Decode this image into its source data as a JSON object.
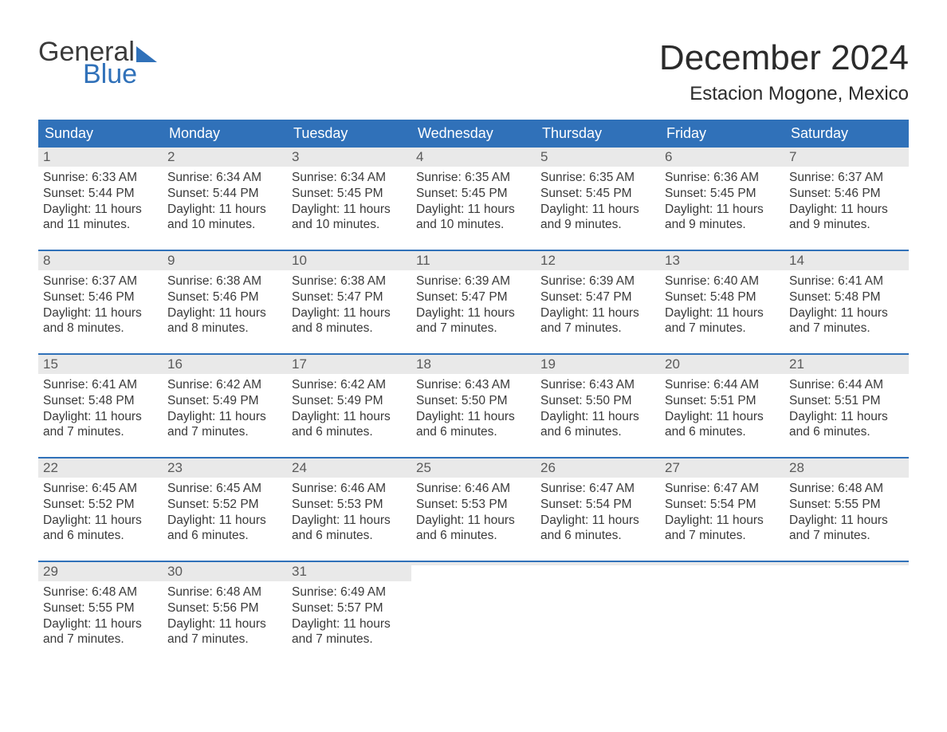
{
  "logo": {
    "line1": "General",
    "line2": "Blue"
  },
  "title": "December 2024",
  "location": "Estacion Mogone, Mexico",
  "colors": {
    "brand_blue": "#3071b9",
    "header_text": "#ffffff",
    "daynum_bg": "#e9e9e9",
    "body_text": "#3a3a3a",
    "page_bg": "#ffffff"
  },
  "typography": {
    "title_fontsize": 44,
    "location_fontsize": 24,
    "header_fontsize": 18,
    "body_fontsize": 15.5
  },
  "weekdays": [
    "Sunday",
    "Monday",
    "Tuesday",
    "Wednesday",
    "Thursday",
    "Friday",
    "Saturday"
  ],
  "weeks": [
    [
      {
        "num": "1",
        "sunrise": "Sunrise: 6:33 AM",
        "sunset": "Sunset: 5:44 PM",
        "daylight": "Daylight: 11 hours and 11 minutes."
      },
      {
        "num": "2",
        "sunrise": "Sunrise: 6:34 AM",
        "sunset": "Sunset: 5:44 PM",
        "daylight": "Daylight: 11 hours and 10 minutes."
      },
      {
        "num": "3",
        "sunrise": "Sunrise: 6:34 AM",
        "sunset": "Sunset: 5:45 PM",
        "daylight": "Daylight: 11 hours and 10 minutes."
      },
      {
        "num": "4",
        "sunrise": "Sunrise: 6:35 AM",
        "sunset": "Sunset: 5:45 PM",
        "daylight": "Daylight: 11 hours and 10 minutes."
      },
      {
        "num": "5",
        "sunrise": "Sunrise: 6:35 AM",
        "sunset": "Sunset: 5:45 PM",
        "daylight": "Daylight: 11 hours and 9 minutes."
      },
      {
        "num": "6",
        "sunrise": "Sunrise: 6:36 AM",
        "sunset": "Sunset: 5:45 PM",
        "daylight": "Daylight: 11 hours and 9 minutes."
      },
      {
        "num": "7",
        "sunrise": "Sunrise: 6:37 AM",
        "sunset": "Sunset: 5:46 PM",
        "daylight": "Daylight: 11 hours and 9 minutes."
      }
    ],
    [
      {
        "num": "8",
        "sunrise": "Sunrise: 6:37 AM",
        "sunset": "Sunset: 5:46 PM",
        "daylight": "Daylight: 11 hours and 8 minutes."
      },
      {
        "num": "9",
        "sunrise": "Sunrise: 6:38 AM",
        "sunset": "Sunset: 5:46 PM",
        "daylight": "Daylight: 11 hours and 8 minutes."
      },
      {
        "num": "10",
        "sunrise": "Sunrise: 6:38 AM",
        "sunset": "Sunset: 5:47 PM",
        "daylight": "Daylight: 11 hours and 8 minutes."
      },
      {
        "num": "11",
        "sunrise": "Sunrise: 6:39 AM",
        "sunset": "Sunset: 5:47 PM",
        "daylight": "Daylight: 11 hours and 7 minutes."
      },
      {
        "num": "12",
        "sunrise": "Sunrise: 6:39 AM",
        "sunset": "Sunset: 5:47 PM",
        "daylight": "Daylight: 11 hours and 7 minutes."
      },
      {
        "num": "13",
        "sunrise": "Sunrise: 6:40 AM",
        "sunset": "Sunset: 5:48 PM",
        "daylight": "Daylight: 11 hours and 7 minutes."
      },
      {
        "num": "14",
        "sunrise": "Sunrise: 6:41 AM",
        "sunset": "Sunset: 5:48 PM",
        "daylight": "Daylight: 11 hours and 7 minutes."
      }
    ],
    [
      {
        "num": "15",
        "sunrise": "Sunrise: 6:41 AM",
        "sunset": "Sunset: 5:48 PM",
        "daylight": "Daylight: 11 hours and 7 minutes."
      },
      {
        "num": "16",
        "sunrise": "Sunrise: 6:42 AM",
        "sunset": "Sunset: 5:49 PM",
        "daylight": "Daylight: 11 hours and 7 minutes."
      },
      {
        "num": "17",
        "sunrise": "Sunrise: 6:42 AM",
        "sunset": "Sunset: 5:49 PM",
        "daylight": "Daylight: 11 hours and 6 minutes."
      },
      {
        "num": "18",
        "sunrise": "Sunrise: 6:43 AM",
        "sunset": "Sunset: 5:50 PM",
        "daylight": "Daylight: 11 hours and 6 minutes."
      },
      {
        "num": "19",
        "sunrise": "Sunrise: 6:43 AM",
        "sunset": "Sunset: 5:50 PM",
        "daylight": "Daylight: 11 hours and 6 minutes."
      },
      {
        "num": "20",
        "sunrise": "Sunrise: 6:44 AM",
        "sunset": "Sunset: 5:51 PM",
        "daylight": "Daylight: 11 hours and 6 minutes."
      },
      {
        "num": "21",
        "sunrise": "Sunrise: 6:44 AM",
        "sunset": "Sunset: 5:51 PM",
        "daylight": "Daylight: 11 hours and 6 minutes."
      }
    ],
    [
      {
        "num": "22",
        "sunrise": "Sunrise: 6:45 AM",
        "sunset": "Sunset: 5:52 PM",
        "daylight": "Daylight: 11 hours and 6 minutes."
      },
      {
        "num": "23",
        "sunrise": "Sunrise: 6:45 AM",
        "sunset": "Sunset: 5:52 PM",
        "daylight": "Daylight: 11 hours and 6 minutes."
      },
      {
        "num": "24",
        "sunrise": "Sunrise: 6:46 AM",
        "sunset": "Sunset: 5:53 PM",
        "daylight": "Daylight: 11 hours and 6 minutes."
      },
      {
        "num": "25",
        "sunrise": "Sunrise: 6:46 AM",
        "sunset": "Sunset: 5:53 PM",
        "daylight": "Daylight: 11 hours and 6 minutes."
      },
      {
        "num": "26",
        "sunrise": "Sunrise: 6:47 AM",
        "sunset": "Sunset: 5:54 PM",
        "daylight": "Daylight: 11 hours and 6 minutes."
      },
      {
        "num": "27",
        "sunrise": "Sunrise: 6:47 AM",
        "sunset": "Sunset: 5:54 PM",
        "daylight": "Daylight: 11 hours and 7 minutes."
      },
      {
        "num": "28",
        "sunrise": "Sunrise: 6:48 AM",
        "sunset": "Sunset: 5:55 PM",
        "daylight": "Daylight: 11 hours and 7 minutes."
      }
    ],
    [
      {
        "num": "29",
        "sunrise": "Sunrise: 6:48 AM",
        "sunset": "Sunset: 5:55 PM",
        "daylight": "Daylight: 11 hours and 7 minutes."
      },
      {
        "num": "30",
        "sunrise": "Sunrise: 6:48 AM",
        "sunset": "Sunset: 5:56 PM",
        "daylight": "Daylight: 11 hours and 7 minutes."
      },
      {
        "num": "31",
        "sunrise": "Sunrise: 6:49 AM",
        "sunset": "Sunset: 5:57 PM",
        "daylight": "Daylight: 11 hours and 7 minutes."
      },
      {
        "empty": true
      },
      {
        "empty": true
      },
      {
        "empty": true
      },
      {
        "empty": true
      }
    ]
  ]
}
